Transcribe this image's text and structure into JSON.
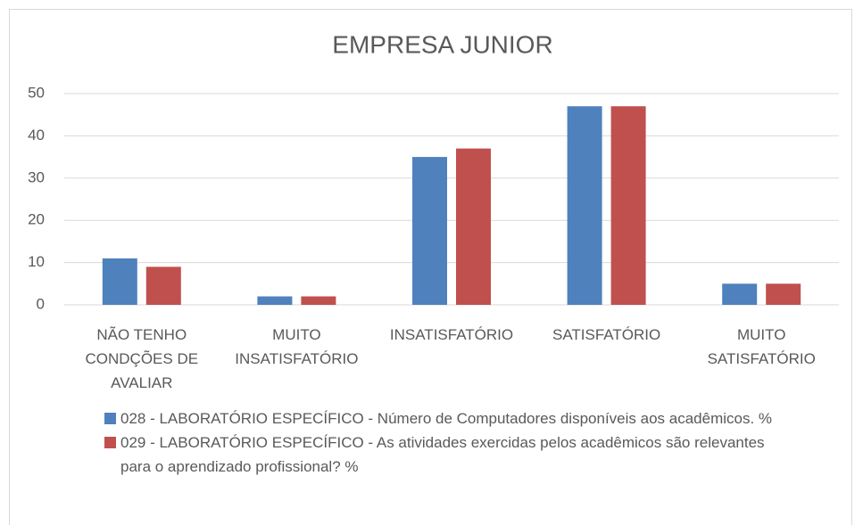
{
  "chart_data": {
    "type": "bar",
    "title": "EMPRESA JUNIOR",
    "categories": [
      "NÃO TENHO CONDÇÕES DE AVALIAR",
      "MUITO INSATISFATÓRIO",
      "INSATISFATÓRIO",
      "SATISFATÓRIO",
      "MUITO SATISFATÓRIO"
    ],
    "series": [
      {
        "name": "028 - LABORATÓRIO ESPECÍFICO - Número de Computadores disponíveis aos acadêmicos. %",
        "color": "#4f81bd",
        "values": [
          11,
          2,
          35,
          47,
          5
        ]
      },
      {
        "name": "029 - LABORATÓRIO ESPECÍFICO - As atividades exercidas pelos acadêmicos são relevantes para o aprendizado profissional? %",
        "color": "#c0504d",
        "values": [
          9,
          2,
          37,
          47,
          5
        ]
      }
    ],
    "ylim": [
      0,
      50
    ],
    "yticks": [
      0,
      10,
      20,
      30,
      40,
      50
    ],
    "grid": true,
    "legend": "bottom"
  }
}
